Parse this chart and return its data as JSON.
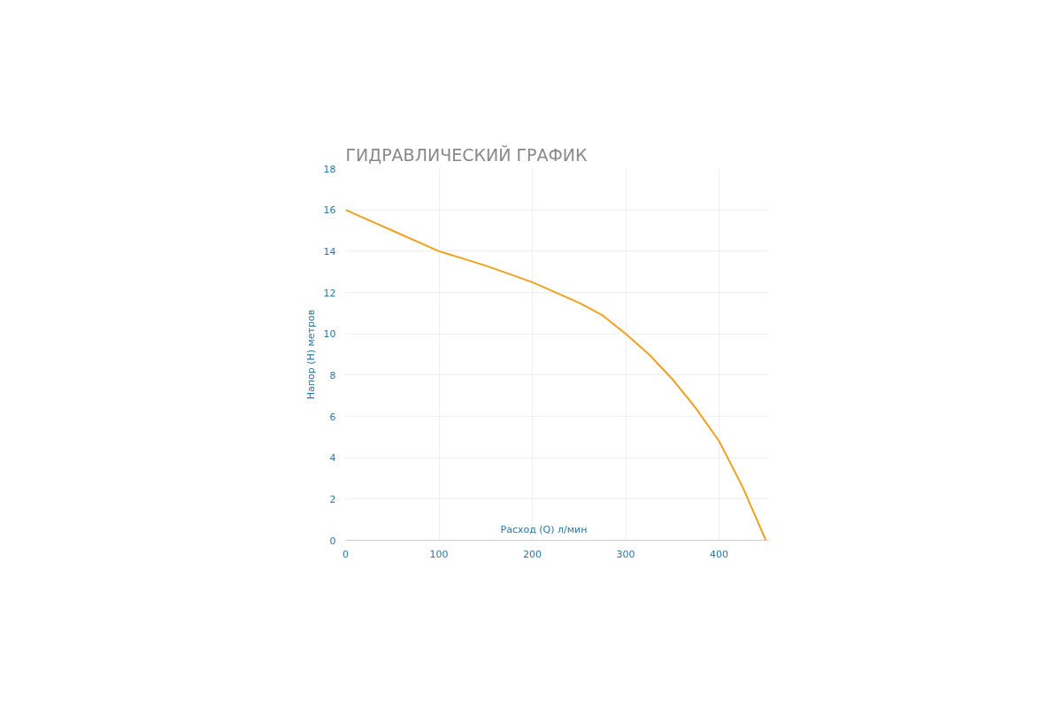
{
  "chart_data": {
    "type": "line",
    "title": "ГИДРАВЛИЧЕСКИЙ ГРАФИК",
    "xlabel": "Расход (Q) л/мин",
    "ylabel": "Напор (H) метров",
    "x": [
      0,
      50,
      100,
      150,
      200,
      250,
      275,
      300,
      325,
      350,
      375,
      400,
      425,
      450
    ],
    "series": [
      {
        "color": "#f0a020",
        "values": [
          16,
          15,
          14,
          13.3,
          12.5,
          11.5,
          10.9,
          10,
          9,
          7.8,
          6.4,
          4.8,
          2.6,
          0
        ]
      }
    ],
    "xlim": [
      0,
      453
    ],
    "ylim": [
      0,
      18
    ],
    "xticks": [
      0,
      100,
      200,
      300,
      400
    ],
    "yticks": [
      0,
      2,
      4,
      6,
      8,
      10,
      12,
      14,
      16,
      18
    ],
    "grid": true,
    "marker": "none",
    "line_style": "solid"
  }
}
